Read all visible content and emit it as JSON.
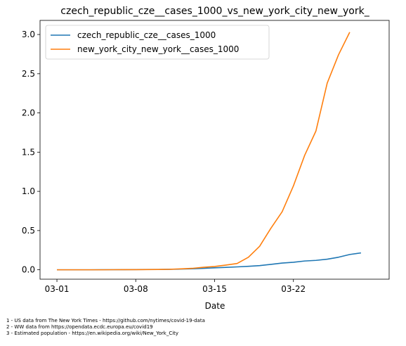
{
  "chart_data": {
    "type": "line",
    "title": "czech_republic_cze__cases_1000_vs_new_york_city_new_york_",
    "xlabel": "Date",
    "ylabel": "",
    "x": [
      "2020-03-01",
      "2020-03-02",
      "2020-03-03",
      "2020-03-04",
      "2020-03-05",
      "2020-03-06",
      "2020-03-07",
      "2020-03-08",
      "2020-03-09",
      "2020-03-10",
      "2020-03-11",
      "2020-03-12",
      "2020-03-13",
      "2020-03-14",
      "2020-03-15",
      "2020-03-16",
      "2020-03-17",
      "2020-03-18",
      "2020-03-19",
      "2020-03-20",
      "2020-03-21",
      "2020-03-22",
      "2020-03-23",
      "2020-03-24",
      "2020-03-25",
      "2020-03-26",
      "2020-03-27",
      "2020-03-28",
      "2020-03-29"
    ],
    "xticks": [
      {
        "value": "2020-03-01",
        "label": "03-01"
      },
      {
        "value": "2020-03-08",
        "label": "03-08"
      },
      {
        "value": "2020-03-15",
        "label": "03-15"
      },
      {
        "value": "2020-03-22",
        "label": "03-22"
      }
    ],
    "xlim": [
      "2020-02-28T12:00",
      "2020-03-30T12:00"
    ],
    "ylim": [
      -0.12,
      3.18
    ],
    "yticks": [
      {
        "value": 0.0,
        "label": "0.0"
      },
      {
        "value": 0.5,
        "label": "0.5"
      },
      {
        "value": 1.0,
        "label": "1.0"
      },
      {
        "value": 1.5,
        "label": "1.5"
      },
      {
        "value": 2.0,
        "label": "2.0"
      },
      {
        "value": 2.5,
        "label": "2.5"
      },
      {
        "value": 3.0,
        "label": "3.0"
      }
    ],
    "series": [
      {
        "name": "czech_republic_cze__cases_1000",
        "color": "#1f77b4",
        "values": [
          0.0,
          0.0,
          0.0,
          0.0,
          0.001,
          0.001,
          0.002,
          0.003,
          0.004,
          0.004,
          0.006,
          0.009,
          0.013,
          0.018,
          0.025,
          0.031,
          0.037,
          0.044,
          0.053,
          0.069,
          0.086,
          0.096,
          0.112,
          0.12,
          0.135,
          0.16,
          0.195,
          0.215,
          null
        ]
      },
      {
        "name": "new_york_city_new_york__cases_1000",
        "color": "#ff7f0e",
        "values": [
          0.0,
          0.0,
          0.0,
          0.0,
          0.0,
          0.001,
          0.002,
          0.002,
          0.003,
          0.004,
          0.006,
          0.012,
          0.018,
          0.032,
          0.042,
          0.06,
          0.08,
          0.16,
          0.3,
          0.53,
          0.74,
          1.07,
          1.46,
          1.77,
          2.38,
          2.74,
          3.03,
          null,
          null
        ]
      }
    ],
    "legend": "top-left",
    "grid": false
  },
  "footnotes": [
    "1 - US data from The New York Times - https://github.com/nytimes/covid-19-data",
    "2 - WW data from https://opendata.ecdc.europa.eu/covid19",
    "3 - Estimated population - https://en.wikipedia.org/wiki/New_York_City"
  ]
}
